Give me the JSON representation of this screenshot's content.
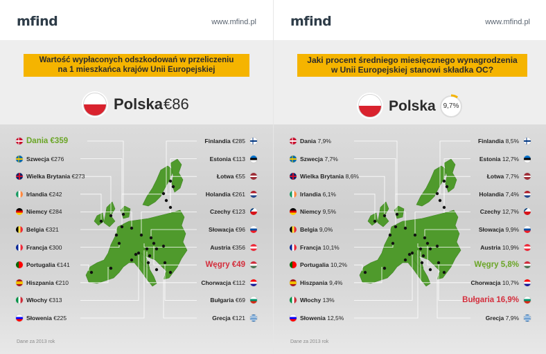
{
  "left": {
    "logo": "mfind",
    "site": "www.mfind.pl",
    "title_line1": "Wartość wypłaconych odszkodowań w przeliczeniu",
    "title_line2": "na 1 mieszkańca krajów Unii Europejskiej",
    "poland_name": "Polska",
    "poland_value": "€86",
    "left_items": [
      {
        "name": "Dania",
        "value": "€359",
        "flag": "dk",
        "style": "green"
      },
      {
        "name": "Szwecja",
        "value": "€276",
        "flag": "se",
        "style": ""
      },
      {
        "name": "Wielka Brytania",
        "value": "€273",
        "flag": "gb",
        "style": ""
      },
      {
        "name": "Irlandia",
        "value": "€242",
        "flag": "ie",
        "style": ""
      },
      {
        "name": "Niemcy",
        "value": "€284",
        "flag": "de",
        "style": ""
      },
      {
        "name": "Belgia",
        "value": "€321",
        "flag": "be",
        "style": ""
      },
      {
        "name": "Francja",
        "value": "€300",
        "flag": "fr",
        "style": ""
      },
      {
        "name": "Portugalia",
        "value": "€141",
        "flag": "pt",
        "style": ""
      },
      {
        "name": "Hiszpania",
        "value": "€210",
        "flag": "es",
        "style": ""
      },
      {
        "name": "Włochy",
        "value": "€313",
        "flag": "it",
        "style": ""
      },
      {
        "name": "Słowenia",
        "value": "€225",
        "flag": "si",
        "style": ""
      }
    ],
    "right_items": [
      {
        "name": "Finlandia",
        "value": "€285",
        "flag": "fi",
        "style": ""
      },
      {
        "name": "Estonia",
        "value": "€113",
        "flag": "ee",
        "style": ""
      },
      {
        "name": "Łotwa",
        "value": "€55",
        "flag": "lv",
        "style": ""
      },
      {
        "name": "Holandia",
        "value": "€261",
        "flag": "nl",
        "style": ""
      },
      {
        "name": "Czechy",
        "value": "€123",
        "flag": "cz",
        "style": ""
      },
      {
        "name": "Słowacja",
        "value": "€96",
        "flag": "sk",
        "style": ""
      },
      {
        "name": "Austria",
        "value": "€356",
        "flag": "at",
        "style": ""
      },
      {
        "name": "Węgry",
        "value": "€49",
        "flag": "hu",
        "style": "red"
      },
      {
        "name": "Chorwacja",
        "value": "€112",
        "flag": "hr",
        "style": ""
      },
      {
        "name": "Bułgaria",
        "value": "€69",
        "flag": "bg",
        "style": ""
      },
      {
        "name": "Grecja",
        "value": "€121",
        "flag": "gr",
        "style": ""
      }
    ],
    "footnote": "Dane za 2013 rok"
  },
  "right": {
    "logo": "mfind",
    "site": "www.mfind.pl",
    "title_line1": "Jaki procent średniego miesięcznego wynagrodzenia",
    "title_line2": "w Unii Europejskiej stanowi składka OC?",
    "poland_name": "Polska",
    "poland_value": "9,7%",
    "poland_fraction": 0.097,
    "left_items": [
      {
        "name": "Dania",
        "value": "7,9%",
        "flag": "dk",
        "style": ""
      },
      {
        "name": "Szwecja",
        "value": "7,7%",
        "flag": "se",
        "style": ""
      },
      {
        "name": "Wielka Brytania",
        "value": "8,6%",
        "flag": "gb",
        "style": ""
      },
      {
        "name": "Irlandia",
        "value": "6,1%",
        "flag": "ie",
        "style": ""
      },
      {
        "name": "Niemcy",
        "value": "9,5%",
        "flag": "de",
        "style": ""
      },
      {
        "name": "Belgia",
        "value": "9,0%",
        "flag": "be",
        "style": ""
      },
      {
        "name": "Francja",
        "value": "10,1%",
        "flag": "fr",
        "style": ""
      },
      {
        "name": "Portugalia",
        "value": "10,2%",
        "flag": "pt",
        "style": ""
      },
      {
        "name": "Hiszpania",
        "value": "9,4%",
        "flag": "es",
        "style": ""
      },
      {
        "name": "Włochy",
        "value": "13%",
        "flag": "it",
        "style": ""
      },
      {
        "name": "Słowenia",
        "value": "12,5%",
        "flag": "si",
        "style": ""
      }
    ],
    "right_items": [
      {
        "name": "Finlandia",
        "value": "8,5%",
        "flag": "fi",
        "style": ""
      },
      {
        "name": "Estonia",
        "value": "12,7%",
        "flag": "ee",
        "style": ""
      },
      {
        "name": "Łotwa",
        "value": "7,7%",
        "flag": "lv",
        "style": ""
      },
      {
        "name": "Holandia",
        "value": "7,4%",
        "flag": "nl",
        "style": ""
      },
      {
        "name": "Czechy",
        "value": "12,7%",
        "flag": "cz",
        "style": ""
      },
      {
        "name": "Słowacja",
        "value": "9,9%",
        "flag": "sk",
        "style": ""
      },
      {
        "name": "Austria",
        "value": "10,9%",
        "flag": "at",
        "style": ""
      },
      {
        "name": "Węgry",
        "value": "5,8%",
        "flag": "hu",
        "style": "green"
      },
      {
        "name": "Chorwacja",
        "value": "10,7%",
        "flag": "hr",
        "style": ""
      },
      {
        "name": "Bułgaria",
        "value": "16,9%",
        "flag": "bg",
        "style": "red"
      },
      {
        "name": "Grecja",
        "value": "7,9%",
        "flag": "gr",
        "style": ""
      }
    ],
    "footnote": "Dane za 2013 rok"
  },
  "colors": {
    "title_box": "#f5b400",
    "map_green": "#4f9a2c",
    "highlight_green": "#6aa526",
    "highlight_red": "#d42e3c",
    "logo": "#2e3c48"
  }
}
